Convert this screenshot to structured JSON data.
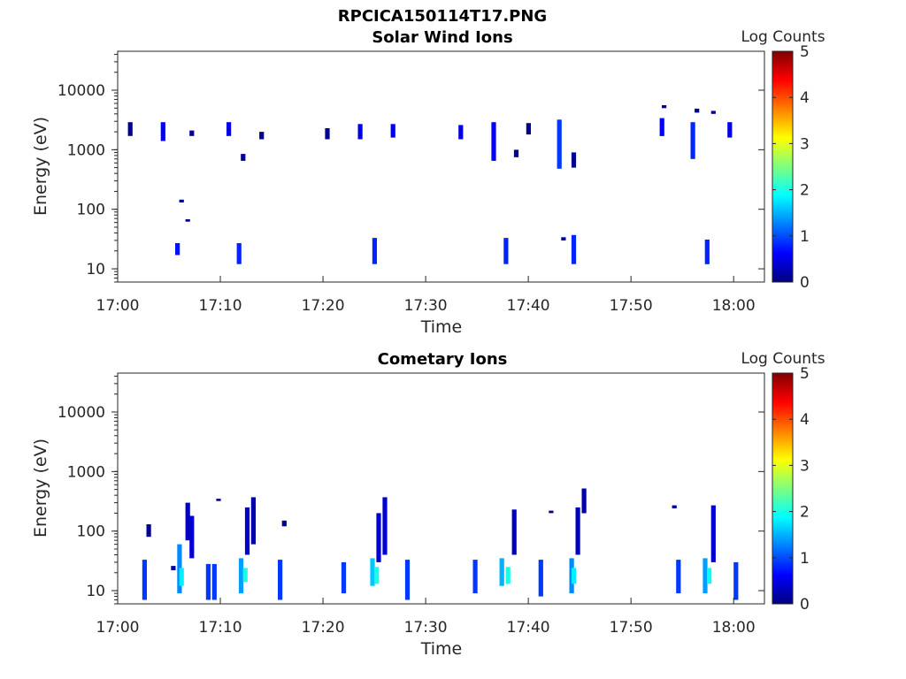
{
  "figure_title": "RPCICA150114T17.PNG",
  "colorbar_colors": [
    "#00007f",
    "#0000ff",
    "#007fff",
    "#00ffff",
    "#7fff7f",
    "#ffff00",
    "#ff7f00",
    "#ff0000",
    "#7f0000"
  ],
  "chart_data": [
    {
      "type": "heatmap",
      "title": "Solar Wind Ions",
      "xlabel": "Time",
      "ylabel": "Energy (eV)",
      "yscale": "log",
      "xlim": [
        "17:00",
        "18:03"
      ],
      "ylim": [
        6,
        45000
      ],
      "xticks": [
        "17:00",
        "17:10",
        "17:20",
        "17:30",
        "17:40",
        "17:50",
        "18:00"
      ],
      "yticks": [
        "10",
        "100",
        "1000",
        "10000"
      ],
      "colorbar": {
        "label": "Log Counts",
        "min": 0,
        "max": 5,
        "ticks": [
          "0",
          "1",
          "2",
          "3",
          "4",
          "5"
        ],
        "colormap": "jet"
      },
      "grid": false,
      "cells": [
        {
          "t": 1.0,
          "e0": 1700,
          "e1": 2900,
          "c": 0.1
        },
        {
          "t": 4.2,
          "e0": 1400,
          "e1": 2900,
          "c": 0.5
        },
        {
          "t": 7.0,
          "e0": 1700,
          "e1": 2100,
          "c": 0.1
        },
        {
          "t": 10.6,
          "e0": 1700,
          "e1": 2900,
          "c": 0.5
        },
        {
          "t": 12.0,
          "e0": 650,
          "e1": 850,
          "c": 0.1
        },
        {
          "t": 13.8,
          "e0": 1500,
          "e1": 2000,
          "c": 0.1
        },
        {
          "t": 20.2,
          "e0": 1500,
          "e1": 2300,
          "c": 0.1
        },
        {
          "t": 23.4,
          "e0": 1500,
          "e1": 2700,
          "c": 0.5
        },
        {
          "t": 26.6,
          "e0": 1600,
          "e1": 2700,
          "c": 0.5
        },
        {
          "t": 33.2,
          "e0": 1500,
          "e1": 2600,
          "c": 0.5
        },
        {
          "t": 36.4,
          "e0": 650,
          "e1": 2900,
          "c": 0.6
        },
        {
          "t": 39.8,
          "e0": 1800,
          "e1": 2800,
          "c": 0.1
        },
        {
          "t": 38.6,
          "e0": 750,
          "e1": 1000,
          "c": 0.1
        },
        {
          "t": 42.8,
          "e0": 480,
          "e1": 3200,
          "c": 0.9
        },
        {
          "t": 44.2,
          "e0": 500,
          "e1": 900,
          "c": 0.1
        },
        {
          "t": 52.8,
          "e0": 1700,
          "e1": 3400,
          "c": 0.6
        },
        {
          "t": 53.0,
          "e0": 5000,
          "e1": 5600,
          "c": 0.1
        },
        {
          "t": 55.8,
          "e0": 700,
          "e1": 2900,
          "c": 0.8
        },
        {
          "t": 56.2,
          "e0": 4200,
          "e1": 4900,
          "c": 0.1
        },
        {
          "t": 57.8,
          "e0": 4000,
          "e1": 4500,
          "c": 0.1
        },
        {
          "t": 59.4,
          "e0": 1600,
          "e1": 2900,
          "c": 0.5
        },
        {
          "t": 6.0,
          "e0": 130,
          "e1": 145,
          "c": 0.1
        },
        {
          "t": 6.6,
          "e0": 62,
          "e1": 68,
          "c": 0.1
        },
        {
          "t": 5.6,
          "e0": 17,
          "e1": 27,
          "c": 0.7
        },
        {
          "t": 11.6,
          "e0": 12,
          "e1": 27,
          "c": 0.8
        },
        {
          "t": 24.8,
          "e0": 12,
          "e1": 33,
          "c": 0.8
        },
        {
          "t": 37.6,
          "e0": 12,
          "e1": 33,
          "c": 0.8
        },
        {
          "t": 43.2,
          "e0": 30,
          "e1": 34,
          "c": 0.1
        },
        {
          "t": 44.2,
          "e0": 12,
          "e1": 37,
          "c": 0.8
        },
        {
          "t": 57.2,
          "e0": 12,
          "e1": 31,
          "c": 0.8
        }
      ]
    },
    {
      "type": "heatmap",
      "title": "Cometary Ions",
      "xlabel": "Time",
      "ylabel": "Energy (eV)",
      "yscale": "log",
      "xlim": [
        "17:00",
        "18:03"
      ],
      "ylim": [
        6,
        45000
      ],
      "xticks": [
        "17:00",
        "17:10",
        "17:20",
        "17:30",
        "17:40",
        "17:50",
        "18:00"
      ],
      "yticks": [
        "10",
        "100",
        "1000",
        "10000"
      ],
      "colorbar": {
        "label": "Log Counts",
        "min": 0,
        "max": 5,
        "ticks": [
          "0",
          "1",
          "2",
          "3",
          "4",
          "5"
        ],
        "colormap": "jet"
      },
      "grid": false,
      "cells": [
        {
          "t": 2.4,
          "e0": 7,
          "e1": 33,
          "c": 0.9
        },
        {
          "t": 2.8,
          "e0": 80,
          "e1": 130,
          "c": 0.1
        },
        {
          "t": 5.2,
          "e0": 22,
          "e1": 26,
          "c": 0.2
        },
        {
          "t": 5.8,
          "e0": 9,
          "e1": 60,
          "c": 1.3
        },
        {
          "t": 6.0,
          "e0": 12,
          "e1": 24,
          "c": 1.8
        },
        {
          "t": 6.6,
          "e0": 70,
          "e1": 300,
          "c": 0.3
        },
        {
          "t": 7.0,
          "e0": 35,
          "e1": 180,
          "c": 0.4
        },
        {
          "t": 8.6,
          "e0": 7,
          "e1": 28,
          "c": 0.9
        },
        {
          "t": 9.2,
          "e0": 7,
          "e1": 28,
          "c": 0.9
        },
        {
          "t": 9.6,
          "e0": 320,
          "e1": 350,
          "c": 0.1
        },
        {
          "t": 11.8,
          "e0": 9,
          "e1": 35,
          "c": 1.4
        },
        {
          "t": 12.2,
          "e0": 14,
          "e1": 24,
          "c": 2.0
        },
        {
          "t": 12.4,
          "e0": 40,
          "e1": 250,
          "c": 0.4
        },
        {
          "t": 13.0,
          "e0": 60,
          "e1": 370,
          "c": 0.2
        },
        {
          "t": 15.6,
          "e0": 7,
          "e1": 33,
          "c": 0.9
        },
        {
          "t": 16.0,
          "e0": 120,
          "e1": 150,
          "c": 0.1
        },
        {
          "t": 21.8,
          "e0": 9,
          "e1": 30,
          "c": 0.9
        },
        {
          "t": 24.6,
          "e0": 12,
          "e1": 35,
          "c": 1.6
        },
        {
          "t": 25.0,
          "e0": 13,
          "e1": 25,
          "c": 2.0
        },
        {
          "t": 25.2,
          "e0": 30,
          "e1": 200,
          "c": 0.4
        },
        {
          "t": 25.8,
          "e0": 40,
          "e1": 370,
          "c": 0.4
        },
        {
          "t": 28.0,
          "e0": 7,
          "e1": 33,
          "c": 0.9
        },
        {
          "t": 34.6,
          "e0": 9,
          "e1": 33,
          "c": 0.9
        },
        {
          "t": 37.2,
          "e0": 12,
          "e1": 35,
          "c": 1.5
        },
        {
          "t": 37.8,
          "e0": 13,
          "e1": 25,
          "c": 2.0
        },
        {
          "t": 38.4,
          "e0": 40,
          "e1": 230,
          "c": 0.3
        },
        {
          "t": 41.0,
          "e0": 8,
          "e1": 33,
          "c": 0.9
        },
        {
          "t": 42.0,
          "e0": 200,
          "e1": 220,
          "c": 0.1
        },
        {
          "t": 44.0,
          "e0": 9,
          "e1": 35,
          "c": 1.3
        },
        {
          "t": 44.2,
          "e0": 13,
          "e1": 24,
          "c": 1.8
        },
        {
          "t": 44.6,
          "e0": 40,
          "e1": 250,
          "c": 0.3
        },
        {
          "t": 45.2,
          "e0": 200,
          "e1": 520,
          "c": 0.2
        },
        {
          "t": 54.0,
          "e0": 240,
          "e1": 270,
          "c": 0.1
        },
        {
          "t": 54.4,
          "e0": 9,
          "e1": 33,
          "c": 0.9
        },
        {
          "t": 57.0,
          "e0": 9,
          "e1": 35,
          "c": 1.4
        },
        {
          "t": 57.4,
          "e0": 13,
          "e1": 24,
          "c": 1.9
        },
        {
          "t": 57.8,
          "e0": 30,
          "e1": 270,
          "c": 0.4
        },
        {
          "t": 60.0,
          "e0": 7,
          "e1": 30,
          "c": 0.9
        }
      ]
    }
  ]
}
